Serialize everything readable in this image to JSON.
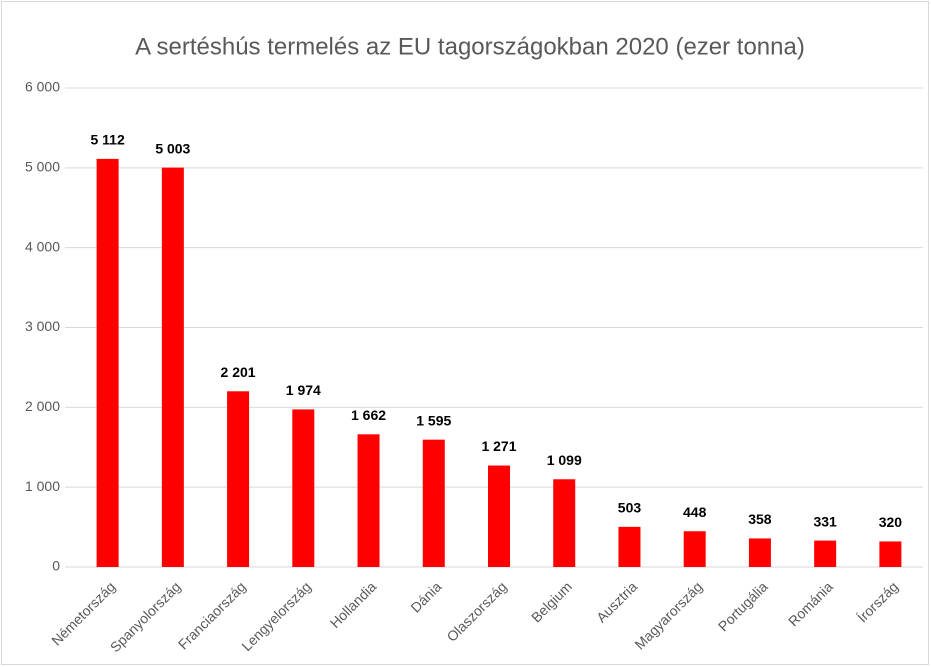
{
  "chart_data": {
    "type": "bar",
    "title": "A sertéshús termelés az EU tagországokban 2020 (ezer tonna)",
    "categories": [
      "Németország",
      "Spanyolország",
      "Franciaország",
      "Lengyelország",
      "Hollandia",
      "Dánia",
      "Olaszország",
      "Belgium",
      "Ausztria",
      "Magyarország",
      "Portugália",
      "Románia",
      "Írország"
    ],
    "values": [
      5112,
      5003,
      2201,
      1974,
      1662,
      1595,
      1271,
      1099,
      503,
      448,
      358,
      331,
      320
    ],
    "value_labels": [
      "5 112",
      "5 003",
      "2 201",
      "1 974",
      "1 662",
      "1 595",
      "1 271",
      "1 099",
      "503",
      "448",
      "358",
      "331",
      "320"
    ],
    "color": "#ff0000",
    "ylim": [
      0,
      6000
    ],
    "yticks": [
      0,
      {
        "value": 1000,
        "label": "1 000"
      },
      {
        "value": 2000,
        "label": "2 000"
      },
      {
        "value": 3000,
        "label": "3 000"
      },
      {
        "value": 4000,
        "label": "4 000"
      },
      {
        "value": 5000,
        "label": "5 000"
      },
      {
        "value": 6000,
        "label": "6 000"
      }
    ],
    "grid": true
  }
}
